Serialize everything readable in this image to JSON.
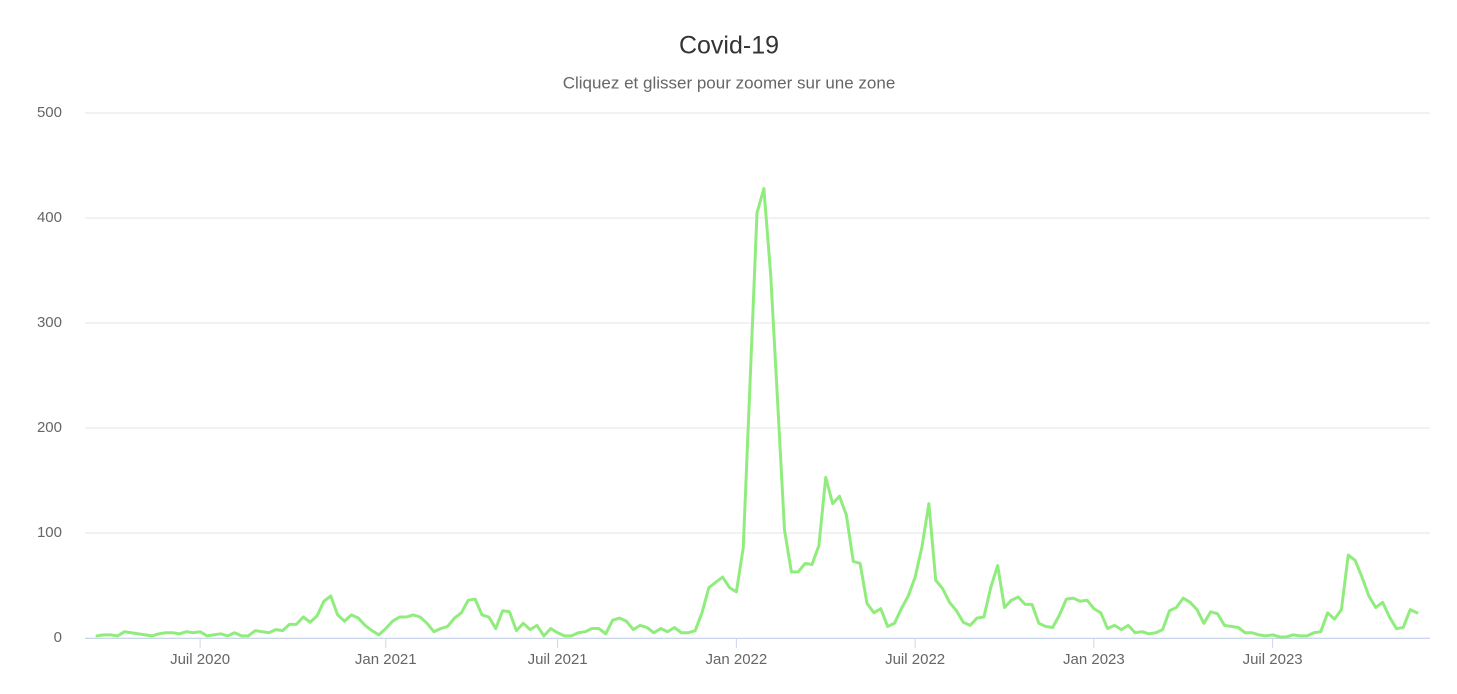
{
  "chart_data": {
    "type": "line",
    "title": "Covid-19",
    "subtitle": "Cliquez et glisser pour zoomer sur une zone",
    "categories": [
      null,
      null,
      null,
      null,
      null,
      null,
      null,
      null,
      null,
      null,
      null,
      null,
      null,
      null,
      null,
      "Juil 2020",
      null,
      null,
      null,
      null,
      null,
      null,
      null,
      null,
      null,
      null,
      null,
      null,
      null,
      null,
      null,
      null,
      null,
      null,
      null,
      null,
      null,
      null,
      null,
      null,
      null,
      null,
      "Jan 2021",
      null,
      null,
      null,
      null,
      null,
      null,
      null,
      null,
      null,
      null,
      null,
      null,
      null,
      null,
      null,
      null,
      null,
      null,
      null,
      null,
      null,
      null,
      null,
      null,
      "Juil 2021",
      null,
      null,
      null,
      null,
      null,
      null,
      null,
      null,
      null,
      null,
      null,
      null,
      null,
      null,
      null,
      null,
      null,
      null,
      null,
      null,
      null,
      null,
      null,
      null,
      null,
      "Jan 2022",
      null,
      null,
      null,
      null,
      null,
      null,
      null,
      null,
      null,
      null,
      null,
      null,
      null,
      null,
      null,
      null,
      null,
      null,
      null,
      null,
      null,
      null,
      null,
      null,
      null,
      "Juil 2022",
      null,
      null,
      null,
      null,
      null,
      null,
      null,
      null,
      null,
      null,
      null,
      null,
      null,
      null,
      null,
      null,
      null,
      null,
      null,
      null,
      null,
      null,
      null,
      null,
      null,
      "Jan 2023",
      null,
      null,
      null,
      null,
      null,
      null,
      null,
      null,
      null,
      null,
      null,
      null,
      null,
      null,
      null,
      null,
      null,
      null,
      null,
      null,
      null,
      null,
      null,
      null,
      null,
      "Juil 2023",
      null,
      null,
      null,
      null,
      null,
      null,
      null,
      null,
      null,
      null,
      null,
      null,
      null,
      null,
      null,
      null,
      null,
      null,
      null,
      null,
      null
    ],
    "values": [
      2,
      3,
      3,
      2,
      6,
      5,
      4,
      3,
      2,
      4,
      5,
      5,
      4,
      6,
      5,
      6,
      2,
      3,
      4,
      2,
      5,
      2,
      2,
      7,
      6,
      5,
      8,
      7,
      13,
      13,
      20,
      15,
      21,
      35,
      40,
      22,
      16,
      22,
      19,
      12,
      7,
      3,
      9,
      16,
      20,
      20,
      22,
      20,
      14,
      6,
      9,
      11,
      19,
      24,
      36,
      37,
      22,
      20,
      9,
      26,
      25,
      7,
      14,
      8,
      12,
      2,
      9,
      5,
      2,
      2,
      5,
      6,
      9,
      9,
      4,
      17,
      19,
      16,
      8,
      12,
      10,
      5,
      9,
      6,
      10,
      5,
      5,
      7,
      24,
      48,
      53,
      58,
      48,
      44,
      86,
      245,
      405,
      428,
      345,
      225,
      103,
      63,
      63,
      71,
      70,
      88,
      153,
      128,
      135,
      117,
      73,
      71,
      33,
      24,
      28,
      11,
      14,
      28,
      40,
      58,
      87,
      128,
      55,
      47,
      34,
      26,
      15,
      12,
      19,
      20,
      48,
      69,
      29,
      36,
      39,
      32,
      32,
      14,
      11,
      10,
      22,
      37,
      38,
      35,
      36,
      28,
      24,
      9,
      12,
      8,
      12,
      5,
      6,
      4,
      5,
      8,
      26,
      29,
      38,
      34,
      27,
      14,
      25,
      23,
      12,
      11,
      10,
      5,
      5,
      3,
      2,
      3,
      1,
      1,
      3,
      2,
      2,
      5,
      6,
      24,
      18,
      27,
      79,
      74,
      58,
      40,
      29,
      34,
      20,
      9,
      10,
      27,
      24
    ],
    "color": "#90ed7d",
    "ylim": [
      0,
      500
    ],
    "yticks": [
      0,
      100,
      200,
      300,
      400,
      500
    ],
    "grid": true
  }
}
